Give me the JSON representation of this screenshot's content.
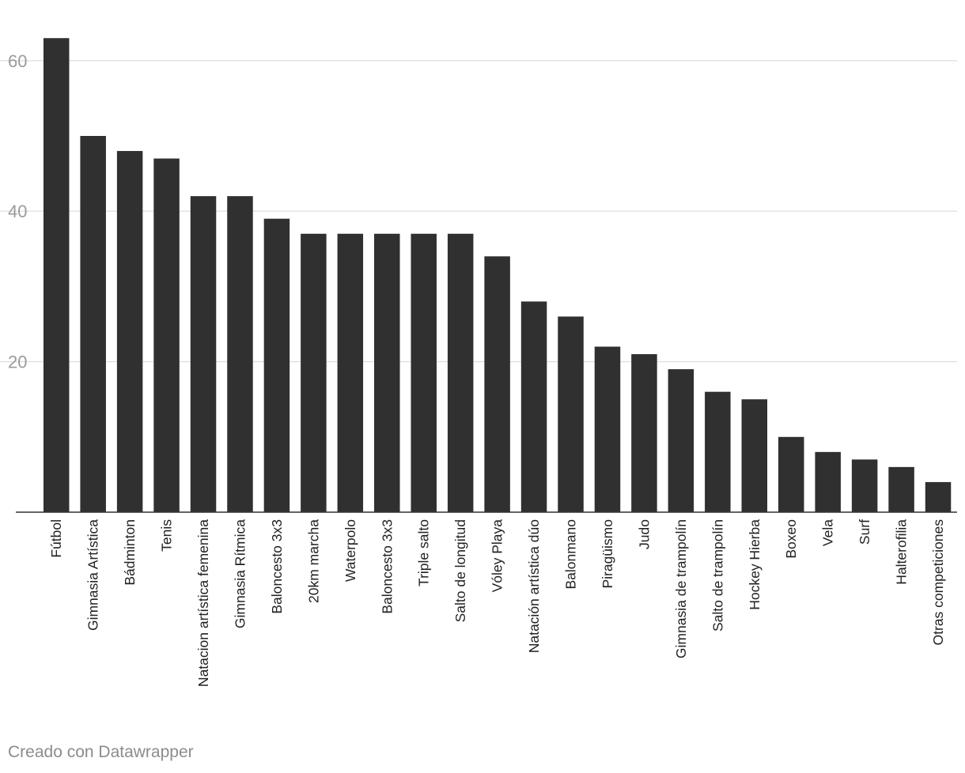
{
  "chart_data": {
    "type": "bar",
    "categories": [
      "Fútbol",
      "Gimnasia Artística",
      "Bádminton",
      "Tenis",
      "Natacion artística femenina",
      "Gimnasia Rítmica",
      "Baloncesto 3x3",
      "20km marcha",
      "Waterpolo",
      "Baloncesto 3x3",
      "Triple salto",
      "Salto de longitud",
      "Vóley Playa",
      "Natación artística dúo",
      "Balonmano",
      "Piragüismo",
      "Judo",
      "Gimnasia de trampolín",
      "Salto de trampolín",
      "Hockey Hierba",
      "Boxeo",
      "Vela",
      "Surf",
      "Halterofilia",
      "Otras competiciones"
    ],
    "values": [
      63,
      50,
      48,
      47,
      42,
      42,
      39,
      37,
      37,
      37,
      37,
      37,
      34,
      28,
      26,
      22,
      21,
      19,
      16,
      15,
      10,
      8,
      7,
      6,
      4
    ],
    "yticks": [
      20,
      40,
      60
    ],
    "ylim": [
      0,
      65
    ],
    "grid": true,
    "bar_color": "#303030"
  },
  "footer": {
    "credit": "Creado con Datawrapper"
  }
}
